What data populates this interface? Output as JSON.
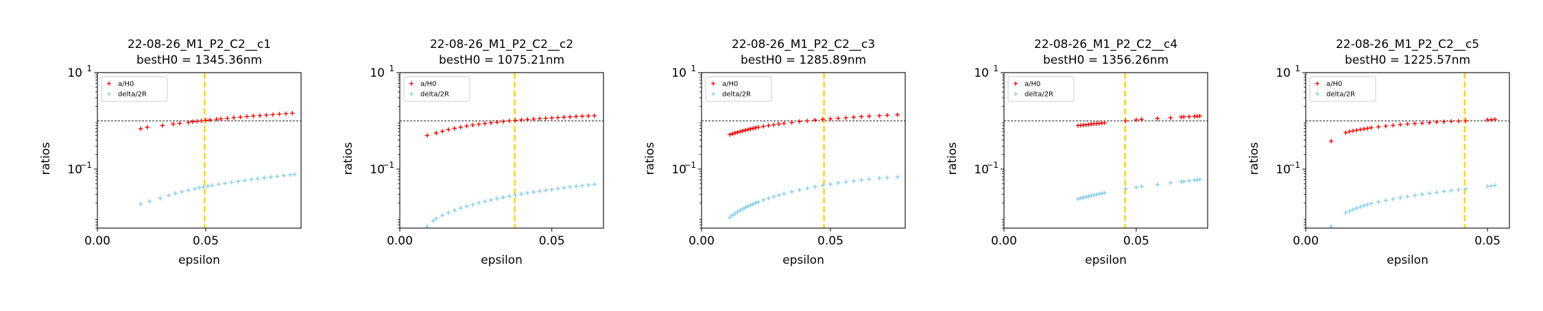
{
  "chart_data": [
    {
      "type": "scatter",
      "title_line1": "22-08-26_M1_P2_C2__c1",
      "title_line2": "bestH0 = 1345.36nm",
      "xlabel": "epsilon",
      "ylabel": "ratios",
      "yscale": "log",
      "xlim": [
        0.0,
        0.094
      ],
      "ylim": [
        0.006,
        10
      ],
      "xticks": [
        {
          "value": 0.0,
          "label": "0.00"
        },
        {
          "value": 0.05,
          "label": "0.05"
        }
      ],
      "yticks": [
        {
          "value": 10,
          "label": "10",
          "exp": "1"
        },
        {
          "value": 0.1,
          "label": "10",
          "exp": "−1"
        }
      ],
      "hline": 1.0,
      "vline": 0.0495,
      "legend_position": "upper-left",
      "series": [
        {
          "name": "a/H0",
          "color": "#ff0000",
          "marker": "plus",
          "x": [
            0.02,
            0.023,
            0.03,
            0.035,
            0.038,
            0.042,
            0.044,
            0.046,
            0.048,
            0.05,
            0.052,
            0.055,
            0.057,
            0.06,
            0.063,
            0.066,
            0.069,
            0.072,
            0.075,
            0.078,
            0.081,
            0.084,
            0.087,
            0.09
          ],
          "y": [
            0.69,
            0.74,
            0.8,
            0.86,
            0.89,
            0.93,
            0.96,
            0.98,
            1.0,
            1.03,
            1.05,
            1.08,
            1.1,
            1.13,
            1.17,
            1.2,
            1.23,
            1.26,
            1.29,
            1.32,
            1.35,
            1.38,
            1.41,
            1.44
          ]
        },
        {
          "name": "delta/2R",
          "color": "#87ceeb",
          "marker": "plus",
          "x": [
            0.02,
            0.024,
            0.029,
            0.033,
            0.036,
            0.039,
            0.042,
            0.045,
            0.047,
            0.049,
            0.051,
            0.053,
            0.056,
            0.059,
            0.062,
            0.065,
            0.068,
            0.071,
            0.074,
            0.077,
            0.08,
            0.083,
            0.086,
            0.089,
            0.091
          ],
          "y": [
            0.019,
            0.0215,
            0.025,
            0.0285,
            0.0315,
            0.034,
            0.0365,
            0.039,
            0.041,
            0.043,
            0.0445,
            0.046,
            0.0485,
            0.051,
            0.0535,
            0.056,
            0.0585,
            0.061,
            0.0635,
            0.066,
            0.0685,
            0.071,
            0.0735,
            0.076,
            0.078
          ]
        }
      ]
    },
    {
      "type": "scatter",
      "title_line1": "22-08-26_M1_P2_C2__c2",
      "title_line2": "bestH0 = 1075.21nm",
      "xlabel": "epsilon",
      "ylabel": "ratios",
      "yscale": "log",
      "xlim": [
        0.0,
        0.067
      ],
      "ylim": [
        0.006,
        10
      ],
      "xticks": [
        {
          "value": 0.0,
          "label": "0.00"
        },
        {
          "value": 0.05,
          "label": "0.05"
        }
      ],
      "yticks": [
        {
          "value": 10,
          "label": "10",
          "exp": "1"
        },
        {
          "value": 0.1,
          "label": "10",
          "exp": "−1"
        }
      ],
      "hline": 1.0,
      "vline": 0.0378,
      "legend_position": "upper-left",
      "series": [
        {
          "name": "a/H0",
          "color": "#ff0000",
          "marker": "plus",
          "x": [
            0.009,
            0.012,
            0.014,
            0.016,
            0.018,
            0.02,
            0.022,
            0.024,
            0.026,
            0.028,
            0.03,
            0.032,
            0.034,
            0.036,
            0.038,
            0.04,
            0.042,
            0.044,
            0.046,
            0.048,
            0.05,
            0.052,
            0.054,
            0.056,
            0.058,
            0.06,
            0.062,
            0.064
          ],
          "y": [
            0.5,
            0.56,
            0.61,
            0.66,
            0.7,
            0.74,
            0.78,
            0.82,
            0.85,
            0.88,
            0.91,
            0.94,
            0.97,
            1.0,
            1.02,
            1.05,
            1.07,
            1.09,
            1.11,
            1.13,
            1.15,
            1.17,
            1.19,
            1.21,
            1.23,
            1.25,
            1.27,
            1.28
          ]
        },
        {
          "name": "delta/2R",
          "color": "#87ceeb",
          "marker": "plus",
          "x": [
            0.009,
            0.011,
            0.012,
            0.014,
            0.016,
            0.018,
            0.02,
            0.022,
            0.024,
            0.026,
            0.028,
            0.03,
            0.032,
            0.034,
            0.036,
            0.038,
            0.04,
            0.042,
            0.044,
            0.046,
            0.048,
            0.05,
            0.052,
            0.054,
            0.056,
            0.058,
            0.06,
            0.062,
            0.064
          ],
          "y": [
            0.0065,
            0.0085,
            0.0095,
            0.011,
            0.0125,
            0.014,
            0.0155,
            0.017,
            0.0185,
            0.02,
            0.0215,
            0.023,
            0.0245,
            0.026,
            0.0275,
            0.029,
            0.0305,
            0.032,
            0.0335,
            0.035,
            0.0365,
            0.038,
            0.0395,
            0.041,
            0.0425,
            0.044,
            0.0455,
            0.047,
            0.0485
          ]
        }
      ]
    },
    {
      "type": "scatter",
      "title_line1": "22-08-26_M1_P2_C2__c3",
      "title_line2": "bestH0 = 1285.89nm",
      "xlabel": "epsilon",
      "ylabel": "ratios",
      "yscale": "log",
      "xlim": [
        0.0,
        0.079
      ],
      "ylim": [
        0.006,
        10
      ],
      "xticks": [
        {
          "value": 0.0,
          "label": "0.00"
        },
        {
          "value": 0.05,
          "label": "0.05"
        }
      ],
      "yticks": [
        {
          "value": 10,
          "label": "10",
          "exp": "1"
        },
        {
          "value": 0.1,
          "label": "10",
          "exp": "−1"
        }
      ],
      "hline": 1.0,
      "vline": 0.0475,
      "legend_position": "upper-left",
      "series": [
        {
          "name": "a/H0",
          "color": "#ff0000",
          "marker": "plus",
          "x": [
            0.011,
            0.012,
            0.013,
            0.014,
            0.015,
            0.016,
            0.017,
            0.018,
            0.019,
            0.02,
            0.021,
            0.022,
            0.024,
            0.026,
            0.028,
            0.03,
            0.032,
            0.035,
            0.038,
            0.041,
            0.044,
            0.047,
            0.05,
            0.053,
            0.056,
            0.059,
            0.062,
            0.065,
            0.069,
            0.072,
            0.076
          ],
          "y": [
            0.52,
            0.54,
            0.56,
            0.58,
            0.6,
            0.62,
            0.64,
            0.66,
            0.68,
            0.7,
            0.72,
            0.74,
            0.77,
            0.8,
            0.83,
            0.86,
            0.89,
            0.93,
            0.97,
            1.0,
            1.04,
            1.07,
            1.1,
            1.13,
            1.16,
            1.19,
            1.22,
            1.25,
            1.28,
            1.31,
            1.34
          ]
        },
        {
          "name": "delta/2R",
          "color": "#87ceeb",
          "marker": "plus",
          "x": [
            0.011,
            0.012,
            0.013,
            0.014,
            0.015,
            0.016,
            0.017,
            0.018,
            0.019,
            0.02,
            0.021,
            0.022,
            0.024,
            0.026,
            0.028,
            0.03,
            0.032,
            0.035,
            0.038,
            0.041,
            0.044,
            0.047,
            0.05,
            0.053,
            0.056,
            0.059,
            0.062,
            0.065,
            0.069,
            0.072,
            0.076
          ],
          "y": [
            0.01,
            0.011,
            0.012,
            0.013,
            0.014,
            0.015,
            0.016,
            0.017,
            0.018,
            0.019,
            0.02,
            0.021,
            0.023,
            0.025,
            0.027,
            0.029,
            0.031,
            0.034,
            0.037,
            0.04,
            0.043,
            0.046,
            0.049,
            0.052,
            0.0545,
            0.057,
            0.0595,
            0.062,
            0.0645,
            0.0665,
            0.069
          ]
        }
      ]
    },
    {
      "type": "scatter",
      "title_line1": "22-08-26_M1_P2_C2__c4",
      "title_line2": "bestH0 = 1356.26nm",
      "xlabel": "epsilon",
      "ylabel": "ratios",
      "yscale": "log",
      "xlim": [
        0.0,
        0.077
      ],
      "ylim": [
        0.006,
        10
      ],
      "xticks": [
        {
          "value": 0.0,
          "label": "0.00"
        },
        {
          "value": 0.05,
          "label": "0.05"
        }
      ],
      "yticks": [
        {
          "value": 10,
          "label": "10",
          "exp": "1"
        },
        {
          "value": 0.1,
          "label": "10",
          "exp": "−1"
        }
      ],
      "hline": 1.0,
      "vline": 0.0458,
      "legend_position": "upper-left",
      "series": [
        {
          "name": "a/H0",
          "color": "#ff0000",
          "marker": "plus",
          "x": [
            0.028,
            0.029,
            0.03,
            0.031,
            0.032,
            0.033,
            0.034,
            0.035,
            0.036,
            0.037,
            0.038,
            0.046,
            0.05,
            0.052,
            0.058,
            0.063,
            0.067,
            0.068,
            0.07,
            0.072,
            0.073,
            0.074
          ],
          "y": [
            0.8,
            0.81,
            0.82,
            0.83,
            0.84,
            0.86,
            0.87,
            0.88,
            0.89,
            0.9,
            0.91,
            1.0,
            1.05,
            1.07,
            1.12,
            1.16,
            1.2,
            1.21,
            1.22,
            1.24,
            1.25,
            1.26
          ]
        },
        {
          "name": "delta/2R",
          "color": "#87ceeb",
          "marker": "plus",
          "x": [
            0.028,
            0.029,
            0.03,
            0.031,
            0.032,
            0.033,
            0.034,
            0.035,
            0.036,
            0.037,
            0.038,
            0.046,
            0.05,
            0.052,
            0.058,
            0.063,
            0.067,
            0.068,
            0.07,
            0.072,
            0.073,
            0.074
          ],
          "y": [
            0.024,
            0.025,
            0.0258,
            0.0266,
            0.0274,
            0.0282,
            0.029,
            0.0298,
            0.0306,
            0.0314,
            0.0322,
            0.039,
            0.042,
            0.044,
            0.048,
            0.052,
            0.055,
            0.056,
            0.0575,
            0.059,
            0.06,
            0.061
          ]
        }
      ]
    },
    {
      "type": "scatter",
      "title_line1": "22-08-26_M1_P2_C2__c5",
      "title_line2": "bestH0 = 1225.57nm",
      "xlabel": "epsilon",
      "ylabel": "ratios",
      "yscale": "log",
      "xlim": [
        0.0,
        0.056
      ],
      "ylim": [
        0.006,
        10
      ],
      "xticks": [
        {
          "value": 0.0,
          "label": "0.00"
        },
        {
          "value": 0.05,
          "label": "0.05"
        }
      ],
      "yticks": [
        {
          "value": 10,
          "label": "10",
          "exp": "1"
        },
        {
          "value": 0.1,
          "label": "10",
          "exp": "−1"
        }
      ],
      "hline": 1.0,
      "vline": 0.0437,
      "legend_position": "upper-left",
      "series": [
        {
          "name": "a/H0",
          "color": "#ff0000",
          "marker": "plus",
          "x": [
            0.007,
            0.011,
            0.012,
            0.013,
            0.014,
            0.015,
            0.016,
            0.017,
            0.018,
            0.02,
            0.022,
            0.024,
            0.026,
            0.028,
            0.03,
            0.032,
            0.034,
            0.036,
            0.038,
            0.04,
            0.042,
            0.044,
            0.05,
            0.051,
            0.052
          ],
          "y": [
            0.38,
            0.57,
            0.6,
            0.62,
            0.64,
            0.66,
            0.68,
            0.7,
            0.72,
            0.75,
            0.78,
            0.81,
            0.84,
            0.86,
            0.88,
            0.9,
            0.92,
            0.94,
            0.96,
            0.98,
            0.99,
            1.0,
            1.05,
            1.06,
            1.07
          ]
        },
        {
          "name": "delta/2R",
          "color": "#87ceeb",
          "marker": "plus",
          "x": [
            0.007,
            0.011,
            0.012,
            0.013,
            0.014,
            0.015,
            0.016,
            0.017,
            0.018,
            0.02,
            0.022,
            0.024,
            0.026,
            0.028,
            0.03,
            0.032,
            0.034,
            0.036,
            0.038,
            0.04,
            0.042,
            0.044,
            0.05,
            0.051,
            0.052
          ],
          "y": [
            0.0065,
            0.0125,
            0.0135,
            0.0145,
            0.0155,
            0.0165,
            0.0175,
            0.0185,
            0.0195,
            0.021,
            0.0225,
            0.024,
            0.0255,
            0.027,
            0.0285,
            0.03,
            0.0315,
            0.033,
            0.0345,
            0.036,
            0.0375,
            0.039,
            0.044,
            0.045,
            0.046
          ]
        }
      ]
    }
  ]
}
